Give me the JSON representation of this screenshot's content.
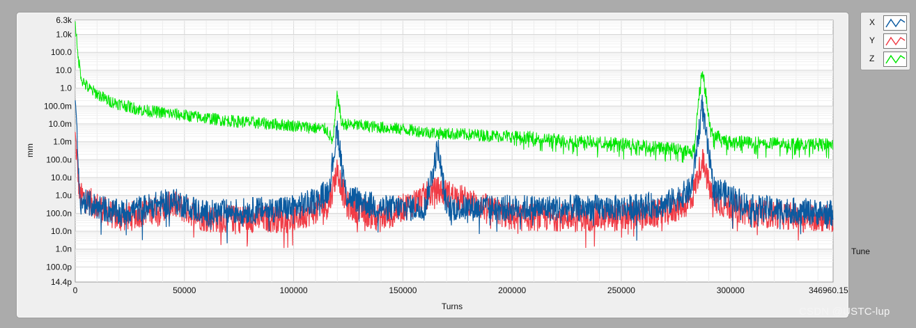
{
  "chart_data": {
    "type": "line",
    "xlabel": "Turns",
    "ylabel": "mm",
    "yscale": "log",
    "xlim": [
      0,
      346960.1517
    ],
    "ylim": [
      "14.4p",
      "6.3k"
    ],
    "x_ticks": [
      "0",
      "50000",
      "100000",
      "150000",
      "200000",
      "250000",
      "300000",
      "346960.1517"
    ],
    "y_ticks": [
      "6.3k",
      "1.0k",
      "100.0",
      "10.0",
      "1.0",
      "100.0m",
      "10.0m",
      "1.0m",
      "100.0u",
      "10.0u",
      "1.0u",
      "100.0n",
      "10.0n",
      "1.0n",
      "100.0p",
      "14.4p"
    ],
    "grid": true,
    "legend_position": "right",
    "series": [
      {
        "name": "X",
        "color": "#0a5aa0",
        "points": [
          [
            0,
            0.3
          ],
          [
            2000,
            5e-07
          ],
          [
            20000,
            1e-07
          ],
          [
            45000,
            5e-07
          ],
          [
            60000,
            1e-07
          ],
          [
            100000,
            2e-07
          ],
          [
            110000,
            5e-07
          ],
          [
            116000,
            2e-06
          ],
          [
            120000,
            0.005
          ],
          [
            124000,
            1e-06
          ],
          [
            140000,
            2e-07
          ],
          [
            160000,
            2e-07
          ],
          [
            166000,
            0.0005
          ],
          [
            170000,
            2e-07
          ],
          [
            200000,
            2e-07
          ],
          [
            250000,
            2e-07
          ],
          [
            270000,
            3e-07
          ],
          [
            282000,
            2e-06
          ],
          [
            287000,
            0.1
          ],
          [
            292000,
            3e-06
          ],
          [
            310000,
            2e-07
          ],
          [
            346960.1517,
            1e-07
          ]
        ]
      },
      {
        "name": "Y",
        "color": "#f03c46",
        "points": [
          [
            0,
            0.002
          ],
          [
            2000,
            1e-06
          ],
          [
            20000,
            5e-08
          ],
          [
            45000,
            3e-07
          ],
          [
            60000,
            5e-08
          ],
          [
            100000,
            5e-08
          ],
          [
            116000,
            3e-07
          ],
          [
            120000,
            3e-05
          ],
          [
            124000,
            3e-07
          ],
          [
            140000,
            5e-08
          ],
          [
            166000,
            2e-06
          ],
          [
            200000,
            6e-08
          ],
          [
            250000,
            6e-08
          ],
          [
            270000,
            1e-07
          ],
          [
            282000,
            5e-07
          ],
          [
            287000,
            0.0001
          ],
          [
            292000,
            5e-07
          ],
          [
            310000,
            1e-07
          ],
          [
            346960.1517,
            5e-08
          ]
        ]
      },
      {
        "name": "Z",
        "color": "#00e600",
        "points": [
          [
            0,
            6300
          ],
          [
            1000,
            100
          ],
          [
            3000,
            3
          ],
          [
            6000,
            1
          ],
          [
            15000,
            0.2
          ],
          [
            30000,
            0.06
          ],
          [
            50000,
            0.03
          ],
          [
            70000,
            0.015
          ],
          [
            100000,
            0.008
          ],
          [
            115000,
            0.005
          ],
          [
            118000,
            0.001
          ],
          [
            120000,
            0.5
          ],
          [
            122000,
            0.01
          ],
          [
            150000,
            0.005
          ],
          [
            166000,
            0.003
          ],
          [
            200000,
            0.002
          ],
          [
            250000,
            0.0008
          ],
          [
            270000,
            0.0005
          ],
          [
            283000,
            0.0003
          ],
          [
            287000,
            20
          ],
          [
            291000,
            0.003
          ],
          [
            300000,
            0.001
          ],
          [
            346960.1517,
            0.0007
          ]
        ]
      }
    ],
    "legend_entries": [
      "X",
      "Y",
      "Z"
    ]
  },
  "side_label": "Tune",
  "watermark": "CSDN @USTC-lup"
}
